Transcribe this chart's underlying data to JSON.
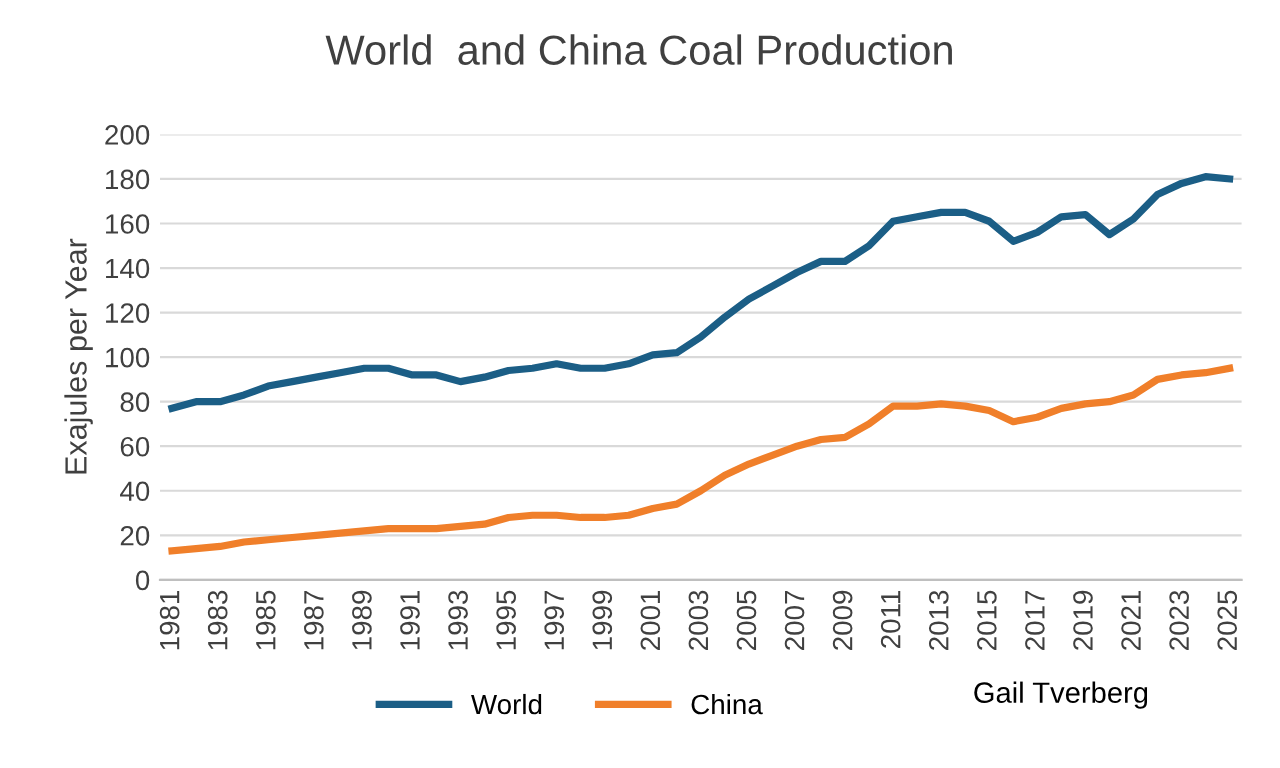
{
  "chart_data": {
    "type": "line",
    "title": "World  and China Coal Production",
    "ylabel": "Exajules per Year",
    "categories": [
      "1981",
      null,
      "1983",
      null,
      "1985",
      null,
      "1987",
      null,
      "1989",
      null,
      "1991",
      null,
      "1993",
      null,
      "1995",
      null,
      "1997",
      null,
      "1999",
      null,
      "2001",
      null,
      "2003",
      null,
      "2005",
      null,
      "2007",
      null,
      "2009",
      null,
      "2011",
      null,
      "2013",
      null,
      "2015",
      null,
      "2017",
      null,
      "2019",
      null,
      "2021",
      null,
      "2023",
      null,
      "2025"
    ],
    "series": [
      {
        "name": "World",
        "color": "#1b5e86",
        "values": [
          77,
          80,
          80,
          83,
          87,
          89,
          91,
          93,
          95,
          95,
          92,
          92,
          89,
          91,
          94,
          95,
          97,
          95,
          95,
          97,
          101,
          102,
          109,
          118,
          126,
          132,
          138,
          143,
          143,
          150,
          161,
          163,
          165,
          165,
          161,
          152,
          156,
          163,
          164,
          155,
          162,
          173,
          178,
          181,
          180
        ]
      },
      {
        "name": "China",
        "color": "#f07f2a",
        "values": [
          13,
          14,
          15,
          17,
          18,
          19,
          20,
          21,
          22,
          23,
          23,
          23,
          24,
          25,
          28,
          29,
          29,
          28,
          28,
          29,
          32,
          34,
          40,
          47,
          52,
          56,
          60,
          63,
          64,
          70,
          78,
          78,
          79,
          78,
          76,
          71,
          73,
          77,
          79,
          80,
          83,
          90,
          92,
          93,
          95
        ]
      }
    ],
    "ylim": [
      0,
      200
    ],
    "yticks": [
      0,
      20,
      40,
      60,
      80,
      100,
      120,
      140,
      160,
      180,
      200
    ],
    "grid": "y",
    "legend": "bottom",
    "marker": "none",
    "line_style": "solid",
    "annotations": [
      "Gail Tverberg"
    ]
  }
}
